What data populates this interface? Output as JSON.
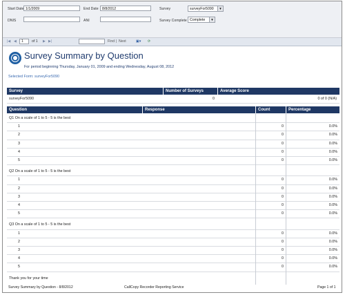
{
  "params": {
    "start_date_label": "Start Date",
    "start_date_value": "1/1/2009",
    "end_date_label": "End Date",
    "end_date_value": "8/8/2012",
    "survey_label": "Survey",
    "survey_value": "surveyFor5090",
    "dnis_label": "DNIS",
    "dnis_value": "",
    "ani_label": "ANI",
    "ani_value": "",
    "survey_complete_label": "Survey Complete",
    "survey_complete_value": "Complete"
  },
  "toolbar": {
    "page_value": "1",
    "page_of": "of 1",
    "find_label": "Find",
    "separator": "|",
    "next_label": "Next"
  },
  "report": {
    "title": "Survey Summary by Question",
    "period": "For period beginning Thursday, January 01, 2009 and ending Wednesday, August 08, 2012",
    "selected_form": "Selected Form: surveyFor5090",
    "summary_headers": [
      "Survey",
      "Number of Surveys",
      "Average Score"
    ],
    "summary_row": {
      "survey": "surveyFor5090",
      "count": "0",
      "avg": "0 of 0 (N/A)"
    },
    "question_headers": [
      "Question",
      "Response",
      "Count",
      "Percentage"
    ],
    "questions": [
      {
        "text": "Q1 On a scale of 1 to 5 - 5 is the best",
        "rows": [
          {
            "r": "1",
            "c": "0",
            "p": "0.0%"
          },
          {
            "r": "2",
            "c": "0",
            "p": "0.0%"
          },
          {
            "r": "3",
            "c": "0",
            "p": "0.0%"
          },
          {
            "r": "4",
            "c": "0",
            "p": "0.0%"
          },
          {
            "r": "5",
            "c": "0",
            "p": "0.0%"
          }
        ]
      },
      {
        "text": "Q2 On a scale of 1 to 5 - 5 is the best",
        "rows": [
          {
            "r": "1",
            "c": "0",
            "p": "0.0%"
          },
          {
            "r": "2",
            "c": "0",
            "p": "0.0%"
          },
          {
            "r": "3",
            "c": "0",
            "p": "0.0%"
          },
          {
            "r": "4",
            "c": "0",
            "p": "0.0%"
          },
          {
            "r": "5",
            "c": "0",
            "p": "0.0%"
          }
        ]
      },
      {
        "text": "Q3 On a scale of 1 to 5 - 5 is the best",
        "rows": [
          {
            "r": "1",
            "c": "0",
            "p": "0.0%"
          },
          {
            "r": "2",
            "c": "0",
            "p": "0.0%"
          },
          {
            "r": "3",
            "c": "0",
            "p": "0.0%"
          },
          {
            "r": "4",
            "c": "0",
            "p": "0.0%"
          },
          {
            "r": "5",
            "c": "0",
            "p": "0.0%"
          }
        ]
      }
    ],
    "closing": "Thank you for your time"
  },
  "footer": {
    "left": "Survey Summary by Question - 8/8/2012",
    "center": "CallCopy Recorder Reporting Service",
    "right": "Page 1 of 1"
  },
  "colors": {
    "header_bg": "#1f3864",
    "title": "#1f3b6e",
    "link": "#3a6ab0"
  },
  "icons": [
    "first-page-icon",
    "prev-page-icon",
    "next-page-icon",
    "last-page-icon",
    "export-icon",
    "refresh-icon",
    "report-logo-icon"
  ]
}
